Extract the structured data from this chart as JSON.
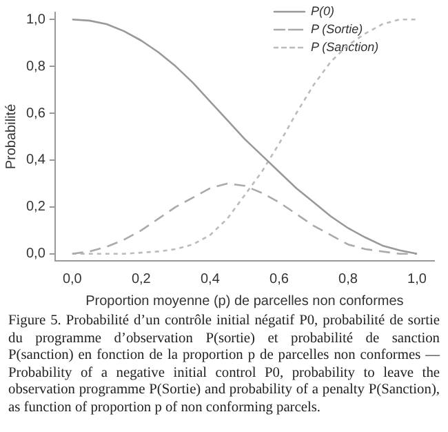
{
  "chart_data": {
    "type": "line",
    "xlabel": "Proportion moyenne (p) de parcelles non conformes",
    "ylabel": "Probabilité",
    "x": [
      0,
      0.05,
      0.1,
      0.15,
      0.2,
      0.25,
      0.3,
      0.35,
      0.4,
      0.45,
      0.5,
      0.55,
      0.6,
      0.65,
      0.7,
      0.75,
      0.8,
      0.85,
      0.9,
      0.95,
      1
    ],
    "series": [
      {
        "name": "P(0)",
        "color": "#999999",
        "line_style": "solid",
        "values": [
          1.0,
          0.995,
          0.98,
          0.95,
          0.91,
          0.86,
          0.8,
          0.73,
          0.65,
          0.57,
          0.49,
          0.42,
          0.35,
          0.28,
          0.22,
          0.16,
          0.11,
          0.07,
          0.035,
          0.015,
          0.0
        ]
      },
      {
        "name": "P (Sortie)",
        "color": "#aaaaaa",
        "line_style": "dashed",
        "values": [
          0,
          0.01,
          0.03,
          0.06,
          0.1,
          0.15,
          0.2,
          0.24,
          0.28,
          0.3,
          0.29,
          0.26,
          0.22,
          0.17,
          0.12,
          0.08,
          0.04,
          0.02,
          0.01,
          0.0,
          0
        ]
      },
      {
        "name": "P (Sanction)",
        "color": "#bbbbbb",
        "line_style": "dotted",
        "values": [
          0,
          0,
          0,
          0,
          0.005,
          0.01,
          0.02,
          0.04,
          0.08,
          0.15,
          0.25,
          0.35,
          0.47,
          0.6,
          0.72,
          0.82,
          0.89,
          0.94,
          0.98,
          1.0,
          1.0
        ]
      }
    ],
    "xlim": [
      -0.05,
      1.05
    ],
    "ylim": [
      -0.03,
      1.03
    ],
    "xticks": [
      {
        "value": 0,
        "label": "0,0"
      },
      {
        "value": 0.2,
        "label": "0,2"
      },
      {
        "value": 0.4,
        "label": "0,4"
      },
      {
        "value": 0.6,
        "label": "0,6"
      },
      {
        "value": 0.8,
        "label": "0,8"
      },
      {
        "value": 1,
        "label": "1,0"
      }
    ],
    "yticks": [
      {
        "value": 0,
        "label": "0,0"
      },
      {
        "value": 0.2,
        "label": "0,2"
      },
      {
        "value": 0.4,
        "label": "0,4"
      },
      {
        "value": 0.6,
        "label": "0,6"
      },
      {
        "value": 0.8,
        "label": "0,8"
      },
      {
        "value": 1,
        "label": "1,0"
      }
    ],
    "grid": false,
    "legend": "top right",
    "marker": "none",
    "annotations": [
      "Figure 5. Probabilité d’un contrôle initial négatif P0, probabilité de sortie du programme d’observation P(sortie) et probabilité de sanction P(sanction) en fonction de la proportion p de parcelles non conformes — Probability of a negative initial control P0, probability to leave the observation programme P(Sortie) and probability of a penalty P(Sanction), as function of proportion p of non conforming parcels."
    ]
  }
}
